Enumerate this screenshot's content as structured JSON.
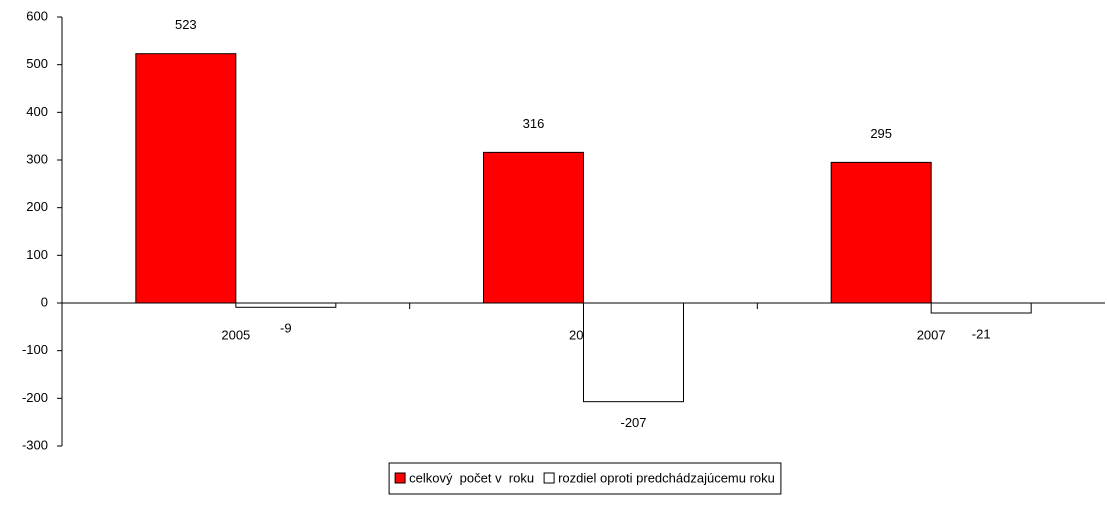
{
  "chart_data": {
    "type": "bar",
    "categories": [
      "2005",
      "2006",
      "2007"
    ],
    "series": [
      {
        "name": "celkový  počet v  roku",
        "color": "#ff0000",
        "values": [
          523,
          316,
          295
        ]
      },
      {
        "name": "rozdiel oproti predchádzajúcemu roku",
        "color": "#ffffff",
        "values": [
          -9,
          -207,
          -21
        ]
      }
    ],
    "ylim": [
      -300,
      600
    ],
    "yticks": [
      -300,
      -200,
      -100,
      0,
      100,
      200,
      300,
      400,
      500,
      600
    ],
    "legend": "bottom"
  }
}
